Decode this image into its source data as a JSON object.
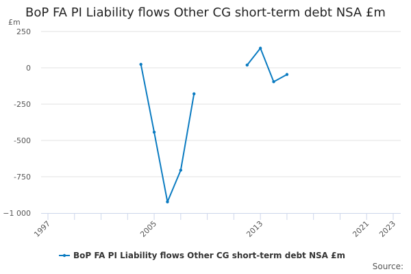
{
  "chart_data": {
    "type": "line",
    "title": "BoP FA PI Liability flows Other CG short-term debt NSA £m",
    "ylabel": "£m",
    "xlabel": "",
    "ylim": [
      -1000,
      250
    ],
    "xlim": [
      1997,
      2023
    ],
    "yticks": [
      250,
      0,
      -250,
      -500,
      -750,
      -1000
    ],
    "ytick_labels": [
      "250",
      "0",
      "-250",
      "-500",
      "-750",
      "−1 000"
    ],
    "xtick_labels": [
      "1997",
      "2005",
      "2013",
      "2021",
      "2023"
    ],
    "grid": true,
    "legend": "bottom",
    "color": "#0a7bc1",
    "series": [
      {
        "name": "BoP FA PI Liability flows Other CG short-term debt NSA £m",
        "x": [
          2004,
          2005,
          2006,
          2007,
          2008,
          2009,
          2010,
          2011,
          2012,
          2013,
          2014,
          2015
        ],
        "values": [
          24,
          -443,
          -923,
          -705,
          -179,
          null,
          null,
          null,
          19,
          135,
          -96,
          -46
        ]
      }
    ]
  },
  "source_label": "Source:"
}
